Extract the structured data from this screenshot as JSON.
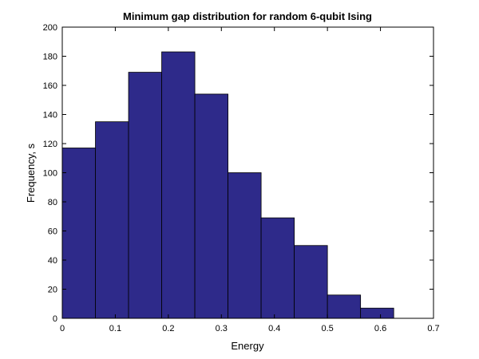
{
  "chart_data": {
    "type": "bar",
    "title": "Minimum gap distribution for random 6-qubit Ising",
    "xlabel": "Energy",
    "ylabel": "Frequency, s",
    "xlim": [
      0,
      0.7
    ],
    "ylim": [
      0,
      200
    ],
    "xticks": [
      0,
      0.1,
      0.2,
      0.3,
      0.4,
      0.5,
      0.6,
      0.7
    ],
    "yticks": [
      0,
      20,
      40,
      60,
      80,
      100,
      120,
      140,
      160,
      180,
      200
    ],
    "bin_edges": [
      0,
      0.0625,
      0.125,
      0.1875,
      0.25,
      0.3125,
      0.375,
      0.4375,
      0.5,
      0.5625,
      0.625
    ],
    "values": [
      117,
      135,
      169,
      183,
      154,
      100,
      69,
      50,
      16,
      7
    ],
    "grid": false,
    "bar_color": "#2E2A8A",
    "edge_color": "#000000"
  }
}
